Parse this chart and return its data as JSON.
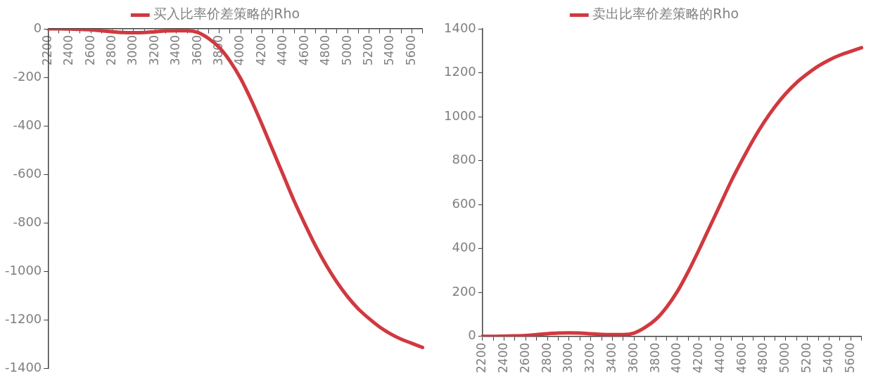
{
  "chart_data": [
    {
      "type": "line",
      "categories": [
        "2200",
        null,
        "2400",
        null,
        "2600",
        null,
        "2800",
        null,
        "3000",
        null,
        "3200",
        null,
        "3400",
        null,
        "3600",
        null,
        "3800",
        null,
        "4000",
        null,
        "4200",
        null,
        "4400",
        null,
        "4600",
        null,
        "4800",
        null,
        "5000",
        null,
        "5200",
        null,
        "5400",
        null,
        "5600",
        null
      ],
      "series": [
        {
          "name": "买入比率价差策略的Rho",
          "color": "#d0393f",
          "values": [
            0,
            0,
            -1,
            -2,
            -4,
            -8,
            -12,
            -15,
            -16,
            -15,
            -12,
            -9,
            -8,
            -8,
            -15,
            -40,
            -77,
            -133,
            -205,
            -295,
            -395,
            -500,
            -605,
            -710,
            -805,
            -895,
            -975,
            -1045,
            -1105,
            -1155,
            -1195,
            -1230,
            -1258,
            -1280,
            -1297,
            -1314
          ]
        }
      ],
      "ylim": [
        -1400,
        0
      ],
      "yticks": [
        -1400,
        -1200,
        -1000,
        -800,
        -600,
        -400,
        -200,
        0
      ],
      "grid": false,
      "legend": "top",
      "marker": "none",
      "line_style": "solid"
    },
    {
      "type": "line",
      "categories": [
        "2200",
        null,
        "2400",
        null,
        "2600",
        null,
        "2800",
        null,
        "3000",
        null,
        "3200",
        null,
        "3400",
        null,
        "3600",
        null,
        "3800",
        null,
        "4000",
        null,
        "4200",
        null,
        "4400",
        null,
        "4600",
        null,
        "4800",
        null,
        "5000",
        null,
        "5200",
        null,
        "5400",
        null,
        "5600",
        null
      ],
      "series": [
        {
          "name": "卖出比率价差策略的Rho",
          "color": "#d0393f",
          "values": [
            0,
            0,
            1,
            2,
            4,
            8,
            12,
            15,
            16,
            15,
            12,
            9,
            8,
            8,
            15,
            40,
            77,
            133,
            205,
            295,
            395,
            500,
            605,
            710,
            805,
            895,
            975,
            1045,
            1105,
            1155,
            1195,
            1230,
            1258,
            1280,
            1297,
            1314
          ]
        }
      ],
      "ylim": [
        0,
        1400
      ],
      "yticks": [
        0,
        200,
        400,
        600,
        800,
        1000,
        1200,
        1400
      ],
      "grid": false,
      "legend": "top",
      "marker": "none",
      "line_style": "solid"
    }
  ]
}
